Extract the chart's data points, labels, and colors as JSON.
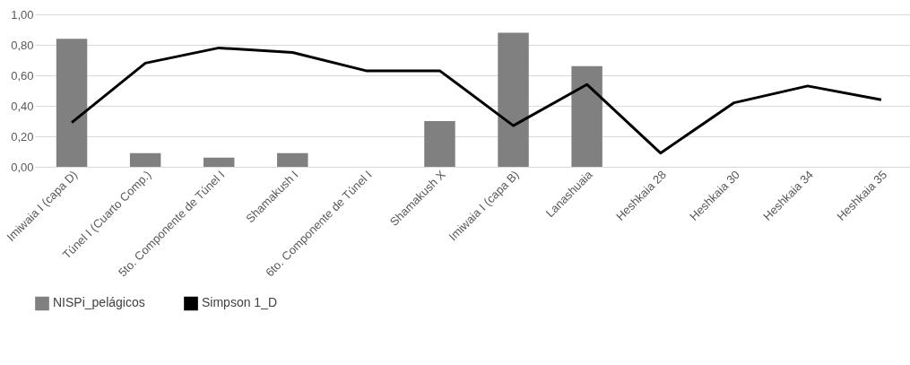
{
  "chart_data": {
    "type": "bar",
    "categories": [
      "Imiwaia I (capa D)",
      "Túnel I (Cuarto Comp.)",
      "5to. Componente de Túnel I",
      "Shamakush I",
      "6to. Componente de Túnel I",
      "Shamakush X",
      "Imiwaia I (capa B)",
      "Lanashuaia",
      "Heshkaia 28",
      "Heshkaia 30",
      "Heshkaia 34",
      "Heshkaia 35"
    ],
    "series": [
      {
        "name": "NISPi_pelágicos",
        "color": "#808080",
        "values": [
          0.84,
          0.09,
          0.06,
          0.09,
          null,
          0.3,
          0.88,
          0.66,
          null,
          null,
          null,
          null
        ]
      },
      {
        "name": "Simpson 1_D",
        "type": "line",
        "color": "#000000",
        "values": [
          0.29,
          0.68,
          0.78,
          0.75,
          0.63,
          0.63,
          0.27,
          0.54,
          0.09,
          0.42,
          0.53,
          0.44
        ]
      }
    ],
    "ylim": [
      0,
      1
    ],
    "yticks": [
      {
        "value": 0,
        "label": "0,00"
      },
      {
        "value": 0.2,
        "label": "0,20"
      },
      {
        "value": 0.4,
        "label": "0,40"
      },
      {
        "value": 0.6,
        "label": "0,60"
      },
      {
        "value": 0.8,
        "label": "0,80"
      },
      {
        "value": 1,
        "label": "1,00"
      }
    ],
    "grid": "y",
    "legend": "bottom"
  }
}
